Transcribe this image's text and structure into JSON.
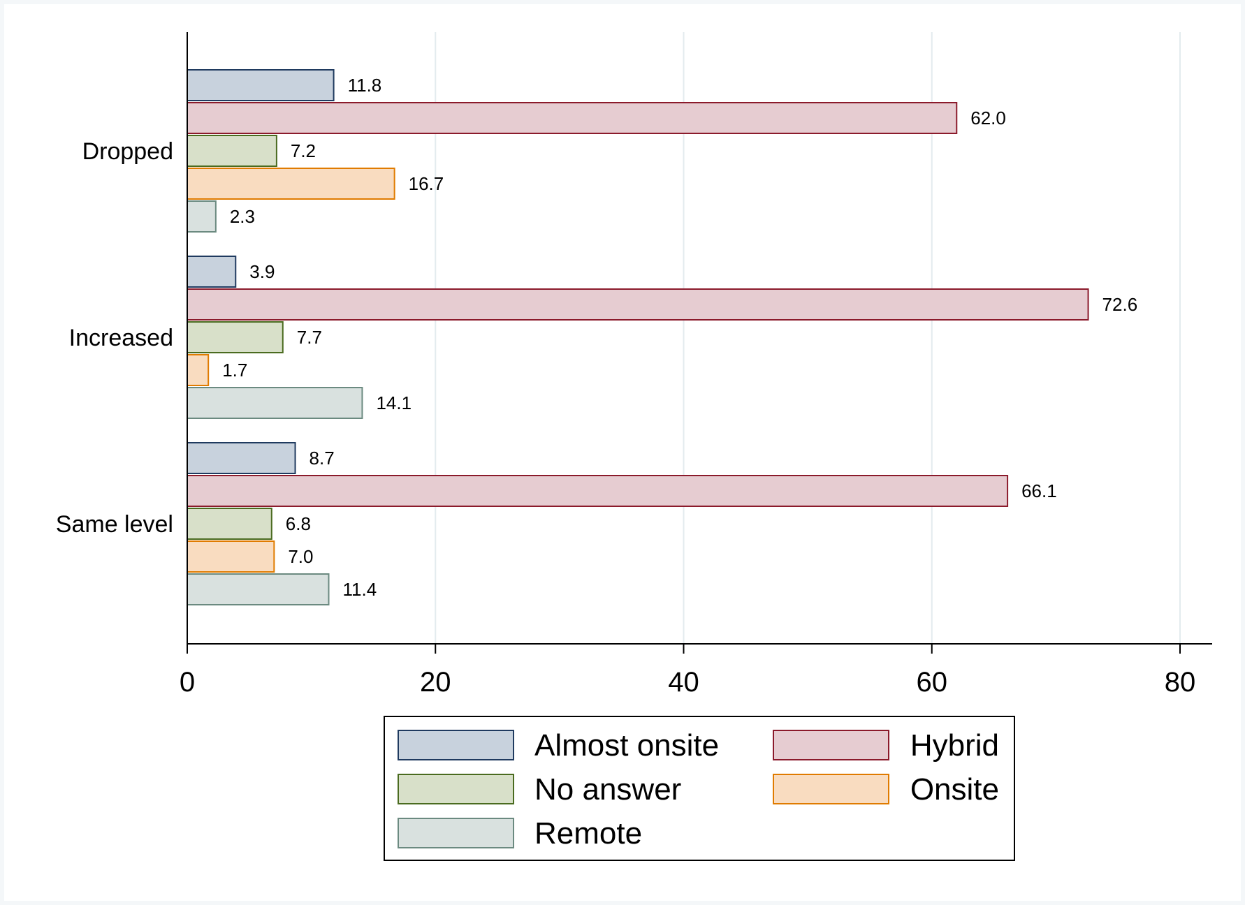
{
  "chart_data": {
    "type": "bar",
    "orientation": "horizontal",
    "categories": [
      "Dropped",
      "Increased",
      "Same level"
    ],
    "series": [
      {
        "name": "Almost onsite",
        "values": [
          11.8,
          3.9,
          8.7
        ],
        "fill": "#c8d2dd",
        "stroke": "#1f3a5f"
      },
      {
        "name": "Hybrid",
        "values": [
          62.0,
          72.6,
          66.1
        ],
        "fill": "#e6ccd1",
        "stroke": "#8b1a2b"
      },
      {
        "name": "No answer",
        "values": [
          7.2,
          7.7,
          6.8
        ],
        "fill": "#d8e0c9",
        "stroke": "#4a6b1f"
      },
      {
        "name": "Onsite",
        "values": [
          16.7,
          1.7,
          7.0
        ],
        "fill": "#f9dcc0",
        "stroke": "#e07b00"
      },
      {
        "name": "Remote",
        "values": [
          2.3,
          14.1,
          11.4
        ],
        "fill": "#d9e1df",
        "stroke": "#6b8a80"
      }
    ],
    "value_labels": [
      [
        "11.8",
        "62.0",
        "7.2",
        "16.7",
        "2.3"
      ],
      [
        "3.9",
        "72.6",
        "7.7",
        "1.7",
        "14.1"
      ],
      [
        "8.7",
        "66.1",
        "6.8",
        "7.0",
        "11.4"
      ]
    ],
    "xlim": [
      0,
      82.5
    ],
    "xticks": [
      0,
      20,
      40,
      60,
      80
    ],
    "tick_labels": [
      "0",
      "20",
      "40",
      "60",
      "80"
    ],
    "grid": "vertical",
    "legend_position": "bottom",
    "title": "",
    "xlabel": "",
    "ylabel": ""
  },
  "colors": {
    "background": "#f4f7f9",
    "plot_background": "#ffffff",
    "gridline": "#e3ebee",
    "axis": "#000000"
  }
}
